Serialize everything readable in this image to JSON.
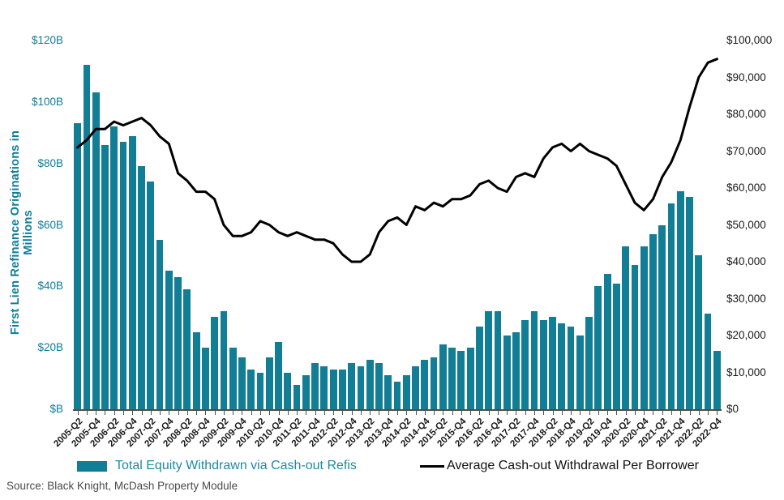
{
  "accent_color": "#127e96",
  "line_color": "#000000",
  "source_note": "Source: Black Knight, McDash Property Module",
  "legend": {
    "bars_label": "Total Equity Withdrawn via Cash-out Refis",
    "line_label": "Average Cash-out Withdrawal Per Borrower"
  },
  "chart_data": {
    "type": "combo-bar-line",
    "title": "",
    "left_axis": {
      "label": "First Lien Refinance Originations in Millions",
      "range": [
        0,
        120
      ],
      "tick_values": [
        0,
        20,
        40,
        60,
        80,
        100,
        120
      ],
      "tick_labels": [
        "$B",
        "$20B",
        "$40B",
        "$60B",
        "$80B",
        "$100B",
        "$120B"
      ]
    },
    "right_axis": {
      "label": "",
      "range": [
        0,
        100000
      ],
      "tick_values": [
        0,
        10000,
        20000,
        30000,
        40000,
        50000,
        60000,
        70000,
        80000,
        90000,
        100000
      ],
      "tick_labels": [
        "$0",
        "$10,000",
        "$20,000",
        "$30,000",
        "$40,000",
        "$50,000",
        "$60,000",
        "$70,000",
        "$80,000",
        "$90,000",
        "$100,000"
      ]
    },
    "x_tick_label_step": 2,
    "grid": false,
    "legend_position": "bottom",
    "categories": [
      "2005-Q2",
      "2005-Q3",
      "2005-Q4",
      "2006-Q1",
      "2006-Q2",
      "2006-Q3",
      "2006-Q4",
      "2007-Q1",
      "2007-Q2",
      "2007-Q3",
      "2007-Q4",
      "2008-Q1",
      "2008-Q2",
      "2008-Q3",
      "2008-Q4",
      "2009-Q1",
      "2009-Q2",
      "2009-Q3",
      "2009-Q4",
      "2010-Q1",
      "2010-Q2",
      "2010-Q3",
      "2010-Q4",
      "2011-Q1",
      "2011-Q2",
      "2011-Q3",
      "2011-Q4",
      "2012-Q1",
      "2012-Q2",
      "2012-Q3",
      "2012-Q4",
      "2013-Q1",
      "2013-Q2",
      "2013-Q3",
      "2013-Q4",
      "2014-Q1",
      "2014-Q2",
      "2014-Q3",
      "2014-Q4",
      "2015-Q1",
      "2015-Q2",
      "2015-Q3",
      "2015-Q4",
      "2016-Q1",
      "2016-Q2",
      "2016-Q3",
      "2016-Q4",
      "2017-Q1",
      "2017-Q2",
      "2017-Q3",
      "2017-Q4",
      "2018-Q1",
      "2018-Q2",
      "2018-Q3",
      "2018-Q4",
      "2019-Q1",
      "2019-Q2",
      "2019-Q3",
      "2019-Q4",
      "2020-Q1",
      "2020-Q2",
      "2020-Q3",
      "2020-Q4",
      "2021-Q1",
      "2021-Q2",
      "2021-Q3",
      "2021-Q4",
      "2022-Q1",
      "2022-Q2",
      "2022-Q3",
      "2022-Q4"
    ],
    "series": [
      {
        "name": "Total Equity Withdrawn via Cash-out Refis",
        "type": "bar",
        "axis": "left",
        "unit": "$B",
        "color": "#127e96",
        "values": [
          93,
          112,
          103,
          86,
          92,
          87,
          89,
          79,
          74,
          55,
          45,
          43,
          39,
          25,
          20,
          30,
          32,
          20,
          17,
          13,
          12,
          17,
          22,
          12,
          8,
          11,
          15,
          14,
          13,
          13,
          15,
          14,
          16,
          15,
          11,
          9,
          11,
          14,
          16,
          17,
          21,
          20,
          19,
          20,
          27,
          32,
          32,
          24,
          25,
          29,
          32,
          29,
          30,
          28,
          27,
          24,
          30,
          40,
          44,
          41,
          53,
          47,
          53,
          57,
          60,
          67,
          71,
          69,
          50,
          31,
          19
        ]
      },
      {
        "name": "Average Cash-out Withdrawal Per Borrower",
        "type": "line",
        "axis": "right",
        "unit": "$",
        "color": "#000000",
        "values": [
          71000,
          73000,
          76000,
          76000,
          78000,
          77000,
          78000,
          79000,
          77000,
          74000,
          72000,
          64000,
          62000,
          59000,
          59000,
          57000,
          50000,
          47000,
          47000,
          48000,
          51000,
          50000,
          48000,
          47000,
          48000,
          47000,
          46000,
          46000,
          45000,
          42000,
          40000,
          40000,
          42000,
          48000,
          51000,
          52000,
          50000,
          55000,
          54000,
          56000,
          55000,
          57000,
          57000,
          58000,
          61000,
          62000,
          60000,
          59000,
          63000,
          64000,
          63000,
          68000,
          71000,
          72000,
          70000,
          72000,
          70000,
          69000,
          68000,
          66000,
          61000,
          56000,
          54000,
          57000,
          63000,
          67000,
          73000,
          82000,
          90000,
          94000,
          95000
        ]
      }
    ]
  }
}
